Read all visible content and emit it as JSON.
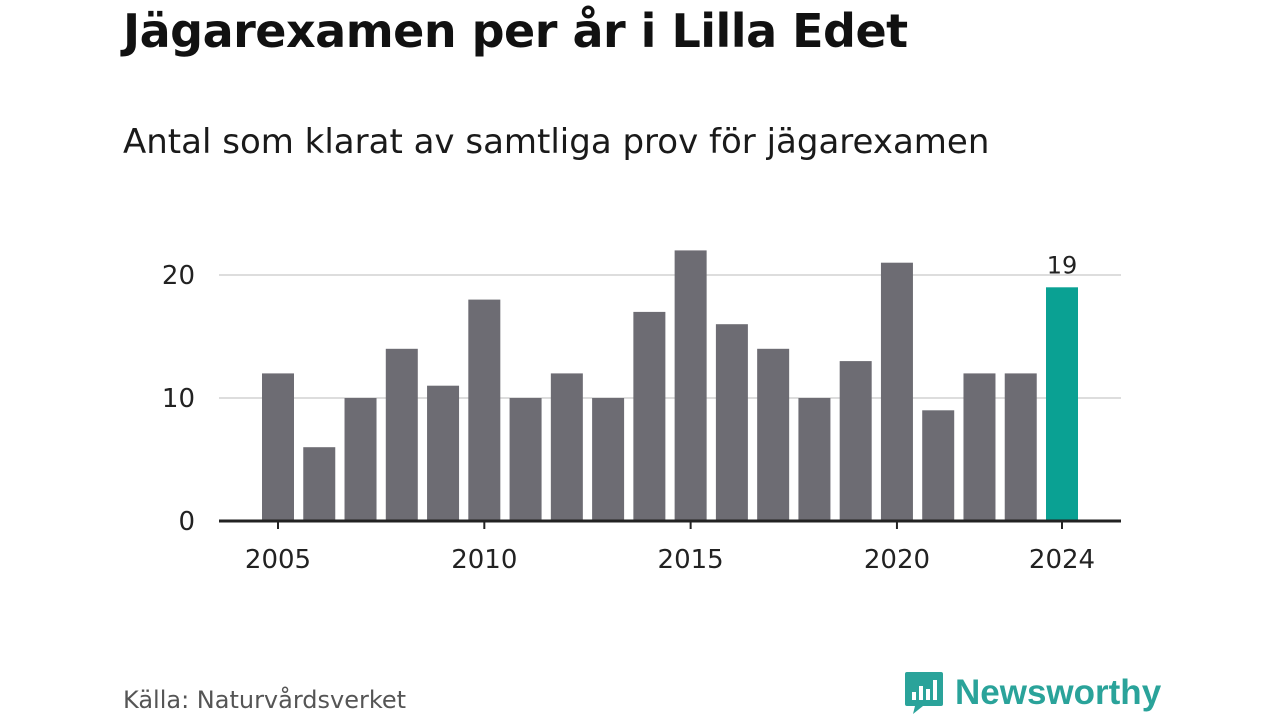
{
  "header": {
    "title": "Jägarexamen per år i Lilla Edet",
    "subtitle": "Antal som klarat av samtliga prov för jägarexamen"
  },
  "footer": {
    "source": "Källa: Naturvårdsverket",
    "brand": "Newsworthy",
    "brand_icon": "newsworthy-chart-logo-icon"
  },
  "colors": {
    "bar": "#6d6c73",
    "highlight": "#0aa193",
    "grid": "#dddddd",
    "axis": "#222222",
    "brand": "#2aa39a"
  },
  "chart_data": {
    "type": "bar",
    "title": "Jägarexamen per år i Lilla Edet",
    "subtitle": "Antal som klarat av samtliga prov för jägarexamen",
    "xlabel": "",
    "ylabel": "",
    "categories": [
      2005,
      2006,
      2007,
      2008,
      2009,
      2010,
      2011,
      2012,
      2013,
      2014,
      2015,
      2016,
      2017,
      2018,
      2019,
      2020,
      2021,
      2022,
      2023,
      2024
    ],
    "values": [
      12,
      6,
      10,
      14,
      11,
      18,
      10,
      12,
      10,
      17,
      22,
      16,
      14,
      10,
      13,
      21,
      9,
      12,
      12,
      19
    ],
    "highlight_category": 2024,
    "data_labels": [
      {
        "category": 2024,
        "text": "19"
      }
    ],
    "x_ticks": [
      2005,
      2010,
      2015,
      2020,
      2024
    ],
    "y_ticks": [
      0,
      10,
      20
    ],
    "ylim": [
      0,
      22
    ],
    "grid": true,
    "legend": "none"
  }
}
